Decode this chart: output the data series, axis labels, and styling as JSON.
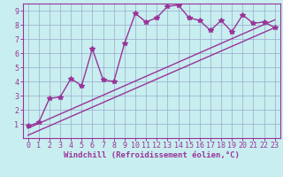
{
  "title": "",
  "xlabel": "Windchill (Refroidissement éolien,°C)",
  "bg_color": "#c8eef0",
  "line_color": "#993399",
  "grid_color": "#99aacc",
  "xlim": [
    -0.5,
    23.5
  ],
  "ylim": [
    0,
    9.5
  ],
  "xticks": [
    0,
    1,
    2,
    3,
    4,
    5,
    6,
    7,
    8,
    9,
    10,
    11,
    12,
    13,
    14,
    15,
    16,
    17,
    18,
    19,
    20,
    21,
    22,
    23
  ],
  "yticks": [
    1,
    2,
    3,
    4,
    5,
    6,
    7,
    8,
    9
  ],
  "line1_x": [
    0,
    1,
    2,
    3,
    4,
    5,
    6,
    7,
    8,
    9,
    10,
    11,
    12,
    13,
    14,
    15,
    16,
    17,
    18,
    19,
    20,
    21,
    22,
    23
  ],
  "line1_y": [
    0.85,
    1.1,
    2.8,
    2.9,
    4.2,
    3.7,
    6.3,
    4.1,
    4.0,
    6.7,
    8.8,
    8.2,
    8.5,
    9.3,
    9.4,
    8.5,
    8.3,
    7.6,
    8.3,
    7.5,
    8.7,
    8.1,
    8.2,
    7.8
  ],
  "line2_x": [
    0,
    23
  ],
  "line2_y": [
    0.2,
    7.8
  ],
  "line3_x": [
    0,
    23
  ],
  "line3_y": [
    0.7,
    8.35
  ],
  "linewidth": 1.0,
  "markersize": 4,
  "fontsize_xlabel": 6.5,
  "fontsize_ticks": 6.0
}
